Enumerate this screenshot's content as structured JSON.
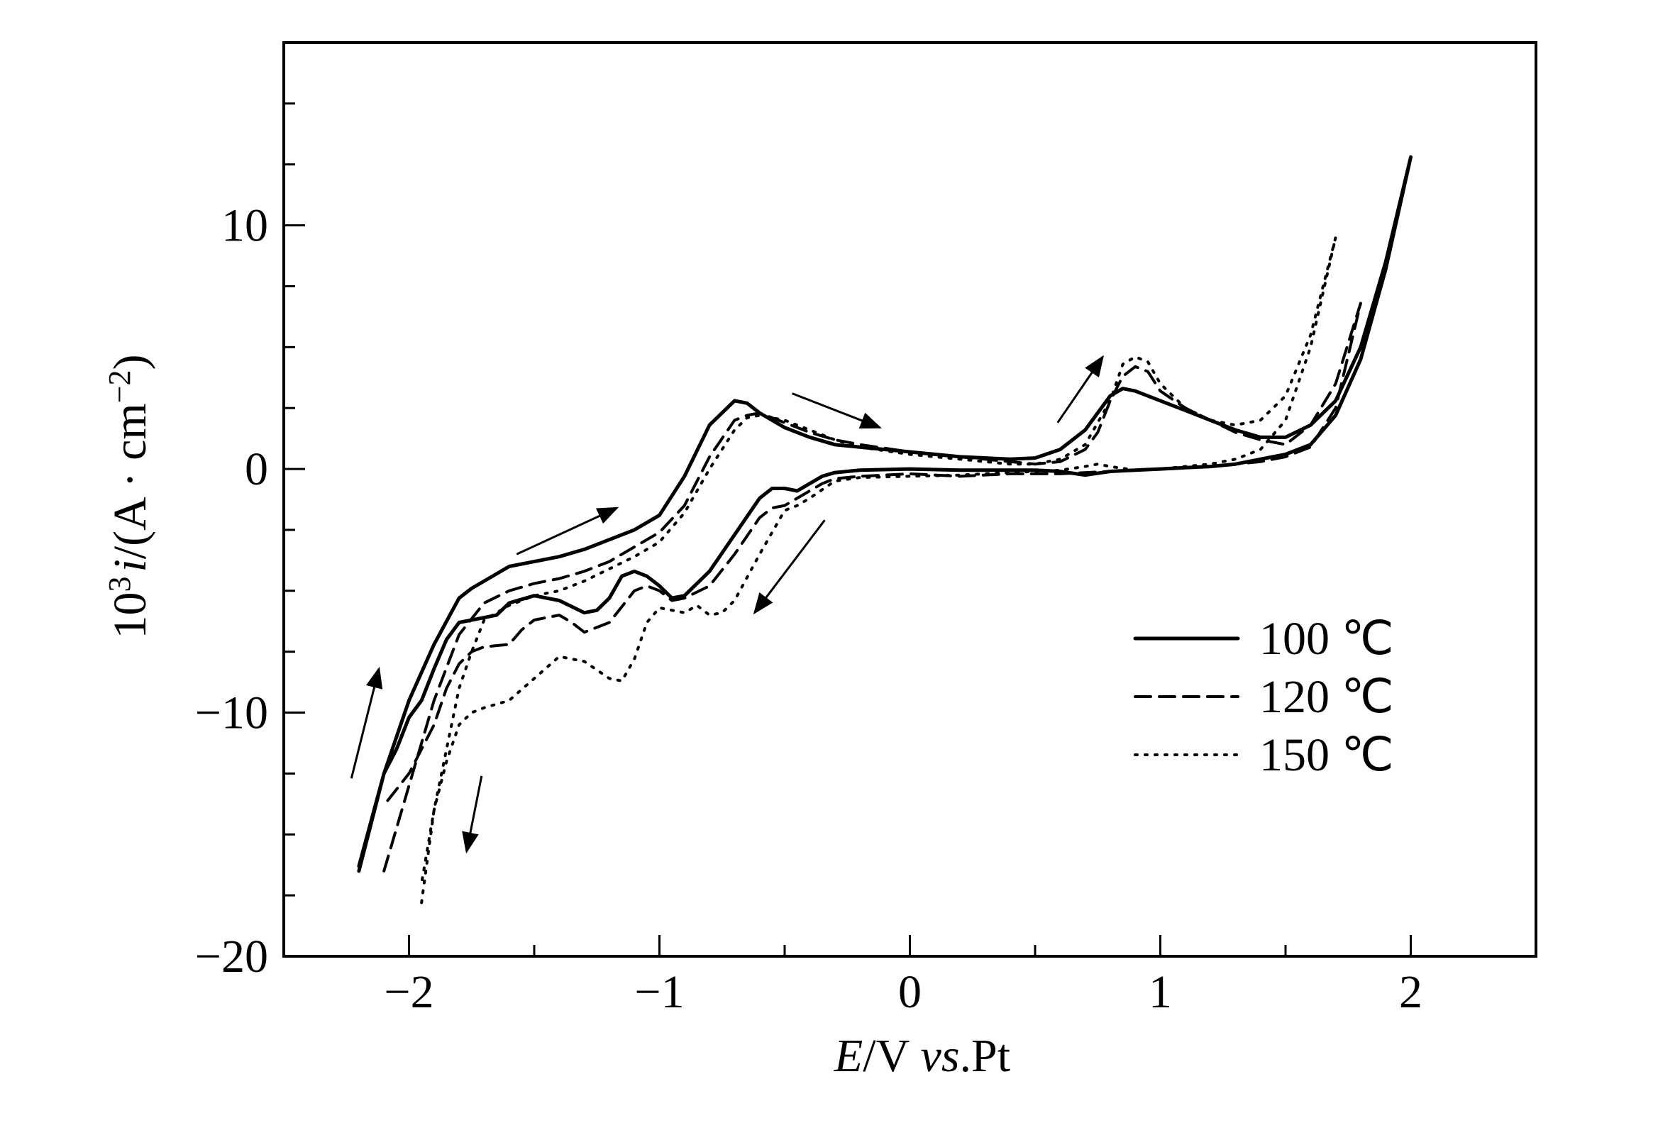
{
  "chart_data": {
    "type": "line",
    "xlabel": {
      "italic": "E",
      "rest1": "/V ",
      "italic2": "vs",
      "rest2": ".Pt"
    },
    "ylabel": {
      "base": "10",
      "sup": "3",
      "italic": "i",
      "unit_open": "/(A · cm",
      "unit_sup": "−2",
      "unit_close": ")"
    },
    "xlim": [
      -2.5,
      2.5
    ],
    "ylim": [
      -20,
      17.5
    ],
    "x_ticks": [
      {
        "value": -2,
        "label": "−2"
      },
      {
        "value": -1,
        "label": "−1"
      },
      {
        "value": 0,
        "label": "0"
      },
      {
        "value": 1,
        "label": "1"
      },
      {
        "value": 2,
        "label": "2"
      }
    ],
    "y_ticks": [
      {
        "value": 10,
        "label": "10"
      },
      {
        "value": 0,
        "label": "0"
      },
      {
        "value": -10,
        "label": "−10"
      },
      {
        "value": -20,
        "label": "−20"
      }
    ],
    "x_minor_step": 0.5,
    "y_minor_step": 2.5,
    "legend_position": "right-middle",
    "series": [
      {
        "name": "100 ℃",
        "style": "solid",
        "x": [
          -2.2,
          -2.1,
          -2.0,
          -1.9,
          -1.8,
          -1.75,
          -1.7,
          -1.6,
          -1.5,
          -1.4,
          -1.3,
          -1.2,
          -1.1,
          -1.0,
          -0.9,
          -0.8,
          -0.7,
          -0.65,
          -0.6,
          -0.5,
          -0.4,
          -0.3,
          -0.2,
          0.0,
          0.2,
          0.4,
          0.5,
          0.6,
          0.7,
          0.8,
          0.85,
          0.9,
          1.0,
          1.1,
          1.2,
          1.3,
          1.4,
          1.5,
          1.6,
          1.7,
          1.8,
          1.9,
          2.0,
          2.0,
          1.9,
          1.8,
          1.7,
          1.6,
          1.5,
          1.4,
          1.3,
          1.2,
          1.1,
          1.0,
          0.9,
          0.8,
          0.7,
          0.6,
          0.5,
          0.4,
          0.2,
          0.0,
          -0.2,
          -0.3,
          -0.35,
          -0.4,
          -0.45,
          -0.5,
          -0.55,
          -0.6,
          -0.7,
          -0.8,
          -0.9,
          -0.95,
          -1.0,
          -1.05,
          -1.1,
          -1.15,
          -1.2,
          -1.25,
          -1.3,
          -1.4,
          -1.5,
          -1.6,
          -1.65,
          -1.7,
          -1.8,
          -1.85,
          -1.9,
          -1.95,
          -2.0,
          -2.05,
          -2.1,
          -2.2
        ],
        "y": [
          -16.5,
          -12.5,
          -9.5,
          -7.2,
          -5.3,
          -4.9,
          -4.6,
          -4.0,
          -3.8,
          -3.6,
          -3.3,
          -2.9,
          -2.5,
          -1.9,
          -0.3,
          1.8,
          2.8,
          2.7,
          2.3,
          1.7,
          1.3,
          1.0,
          0.9,
          0.7,
          0.5,
          0.4,
          0.45,
          0.8,
          1.6,
          3.0,
          3.3,
          3.2,
          2.8,
          2.4,
          2.0,
          1.6,
          1.3,
          1.3,
          1.8,
          2.8,
          5.0,
          8.5,
          12.8,
          12.8,
          8.2,
          4.5,
          2.2,
          1.0,
          0.6,
          0.4,
          0.2,
          0.1,
          0.05,
          0.0,
          -0.05,
          -0.1,
          -0.25,
          -0.1,
          -0.05,
          -0.05,
          -0.05,
          0.0,
          -0.05,
          -0.15,
          -0.3,
          -0.6,
          -0.9,
          -0.8,
          -0.8,
          -1.2,
          -2.7,
          -4.2,
          -5.2,
          -5.3,
          -4.8,
          -4.4,
          -4.2,
          -4.4,
          -5.3,
          -5.8,
          -5.9,
          -5.4,
          -5.2,
          -5.5,
          -6.0,
          -6.1,
          -6.3,
          -7.0,
          -8.2,
          -9.5,
          -10.2,
          -11.5,
          -12.5,
          -16.3
        ]
      },
      {
        "name": "120 ℃",
        "style": "dashed",
        "x": [
          -2.1,
          -2.0,
          -1.9,
          -1.8,
          -1.7,
          -1.6,
          -1.5,
          -1.4,
          -1.3,
          -1.2,
          -1.1,
          -1.0,
          -0.9,
          -0.8,
          -0.7,
          -0.65,
          -0.6,
          -0.5,
          -0.4,
          -0.3,
          -0.2,
          0.0,
          0.2,
          0.4,
          0.5,
          0.6,
          0.7,
          0.75,
          0.8,
          0.85,
          0.9,
          0.95,
          1.0,
          1.1,
          1.2,
          1.3,
          1.4,
          1.5,
          1.6,
          1.7,
          1.8,
          1.8,
          1.7,
          1.6,
          1.5,
          1.4,
          1.2,
          1.0,
          0.8,
          0.6,
          0.4,
          0.2,
          0.0,
          -0.2,
          -0.3,
          -0.35,
          -0.4,
          -0.5,
          -0.55,
          -0.6,
          -0.7,
          -0.8,
          -0.9,
          -0.95,
          -1.0,
          -1.05,
          -1.1,
          -1.2,
          -1.3,
          -1.35,
          -1.4,
          -1.5,
          -1.55,
          -1.6,
          -1.7,
          -1.75,
          -1.8,
          -1.85,
          -1.9,
          -2.0,
          -2.1
        ],
        "y": [
          -16.5,
          -13.0,
          -9.5,
          -6.8,
          -5.5,
          -5.0,
          -4.7,
          -4.5,
          -4.2,
          -3.8,
          -3.2,
          -2.6,
          -1.5,
          0.5,
          2.0,
          2.2,
          2.3,
          1.9,
          1.5,
          1.2,
          1.0,
          0.7,
          0.5,
          0.3,
          0.2,
          0.3,
          0.8,
          1.5,
          2.8,
          3.8,
          4.2,
          4.0,
          3.2,
          2.5,
          2.0,
          1.5,
          1.2,
          1.0,
          1.8,
          3.5,
          6.8,
          6.8,
          2.5,
          0.9,
          0.5,
          0.3,
          0.1,
          0.0,
          -0.1,
          -0.2,
          -0.2,
          -0.3,
          -0.2,
          -0.3,
          -0.4,
          -0.6,
          -0.9,
          -1.5,
          -1.6,
          -2.0,
          -3.5,
          -4.8,
          -5.3,
          -5.4,
          -5.0,
          -4.8,
          -5.0,
          -6.3,
          -6.7,
          -6.3,
          -6.0,
          -6.2,
          -6.6,
          -7.2,
          -7.3,
          -7.5,
          -8.0,
          -9.0,
          -10.5,
          -12.5,
          -13.8
        ]
      },
      {
        "name": "150 ℃",
        "style": "dotted",
        "x": [
          -1.95,
          -1.9,
          -1.85,
          -1.8,
          -1.75,
          -1.7,
          -1.6,
          -1.5,
          -1.4,
          -1.3,
          -1.2,
          -1.1,
          -1.0,
          -0.9,
          -0.8,
          -0.7,
          -0.65,
          -0.6,
          -0.5,
          -0.4,
          -0.3,
          -0.2,
          0.0,
          0.2,
          0.4,
          0.5,
          0.6,
          0.7,
          0.8,
          0.85,
          0.9,
          0.95,
          1.0,
          1.1,
          1.2,
          1.3,
          1.4,
          1.5,
          1.6,
          1.7,
          1.7,
          1.6,
          1.5,
          1.4,
          1.3,
          1.2,
          1.1,
          1.0,
          0.9,
          0.8,
          0.75,
          0.7,
          0.6,
          0.4,
          0.2,
          0.0,
          -0.2,
          -0.3,
          -0.4,
          -0.45,
          -0.5,
          -0.6,
          -0.7,
          -0.75,
          -0.8,
          -0.85,
          -0.9,
          -1.0,
          -1.05,
          -1.1,
          -1.15,
          -1.2,
          -1.3,
          -1.4,
          -1.5,
          -1.6,
          -1.7,
          -1.75,
          -1.8,
          -1.85,
          -1.9,
          -1.95
        ],
        "y": [
          -17.8,
          -14.0,
          -11.5,
          -9.0,
          -7.5,
          -6.2,
          -5.6,
          -5.2,
          -5.0,
          -4.6,
          -4.1,
          -3.6,
          -3.0,
          -1.8,
          0.0,
          1.6,
          2.1,
          2.2,
          2.0,
          1.6,
          1.2,
          0.9,
          0.6,
          0.4,
          0.2,
          0.2,
          0.4,
          1.0,
          2.8,
          4.3,
          4.6,
          4.4,
          3.5,
          2.5,
          2.0,
          1.8,
          2.0,
          3.0,
          5.5,
          9.5,
          9.5,
          5.0,
          2.0,
          0.8,
          0.4,
          0.2,
          0.1,
          0.0,
          -0.05,
          0.1,
          0.2,
          0.1,
          -0.05,
          -0.15,
          -0.25,
          -0.3,
          -0.35,
          -0.5,
          -1.2,
          -1.5,
          -1.7,
          -3.5,
          -5.4,
          -5.9,
          -6.0,
          -5.6,
          -5.9,
          -5.7,
          -6.3,
          -7.8,
          -8.7,
          -8.6,
          -7.9,
          -7.7,
          -8.6,
          -9.5,
          -9.8,
          -10.0,
          -10.5,
          -12.0,
          -14.0,
          -17.0
        ]
      }
    ],
    "arrows": [
      {
        "from": [
          -2.23,
          -12.7
        ],
        "to": [
          -2.12,
          -8.2
        ]
      },
      {
        "from": [
          -1.57,
          -3.5
        ],
        "to": [
          -1.17,
          -1.6
        ]
      },
      {
        "from": [
          -0.47,
          3.1
        ],
        "to": [
          -0.12,
          1.7
        ]
      },
      {
        "from": [
          0.59,
          1.9
        ],
        "to": [
          0.77,
          4.6
        ]
      },
      {
        "from": [
          -0.34,
          -2.1
        ],
        "to": [
          -0.62,
          -5.9
        ]
      },
      {
        "from": [
          -1.71,
          -12.6
        ],
        "to": [
          -1.77,
          -15.7
        ]
      }
    ]
  }
}
